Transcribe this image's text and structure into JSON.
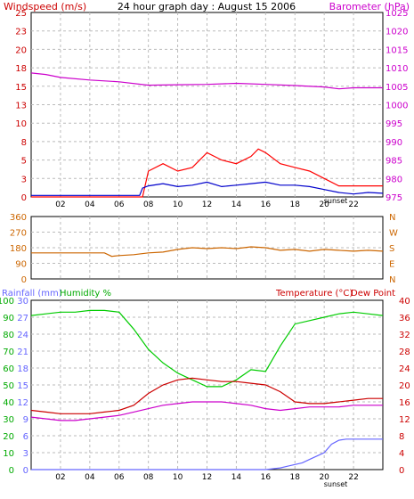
{
  "chart_data": [
    {
      "type": "line",
      "title": "24 hour graph day : August 15 2006",
      "left_axis_title": "Windspeed (m/s)",
      "right_axis_title": "Barometer (hPa)",
      "left_ylim": [
        0,
        25
      ],
      "right_ylim": [
        975,
        1025
      ],
      "left_ticks": [
        "0",
        "3",
        "5",
        "8",
        "10",
        "13",
        "15",
        "18",
        "20",
        "23",
        "25"
      ],
      "right_ticks": [
        "975",
        "980",
        "985",
        "990",
        "995",
        "1000",
        "1005",
        "1010",
        "1015",
        "1020",
        "1025"
      ],
      "xlim": [
        0,
        24
      ],
      "x_ticks": [
        "02",
        "04",
        "06",
        "08",
        "10",
        "12",
        "14",
        "16",
        "18",
        "20",
        "22"
      ],
      "annotation": "sunset",
      "series": [
        {
          "axis": "right",
          "color": "#cc00cc",
          "x": [
            0,
            1,
            2,
            4,
            6,
            8,
            10,
            12,
            14,
            16,
            18,
            20,
            21,
            22,
            24
          ],
          "values": [
            1008.6,
            1008.2,
            1007.4,
            1006.7,
            1006.2,
            1005.3,
            1005.4,
            1005.5,
            1005.8,
            1005.5,
            1005.2,
            1004.8,
            1004.3,
            1004.6,
            1004.6
          ]
        },
        {
          "axis": "left",
          "color": "#ff0000",
          "x": [
            0,
            7.6,
            8,
            9,
            10,
            11,
            12,
            13,
            14,
            15,
            15.5,
            16,
            17,
            18,
            19,
            20,
            21,
            22,
            23,
            24
          ],
          "values": [
            0,
            0,
            3.5,
            4.5,
            3.5,
            4,
            6,
            5,
            4.5,
            5.5,
            6.5,
            6,
            4.5,
            4,
            3.5,
            2.5,
            1.5,
            1.5,
            1.5,
            1.5
          ]
        },
        {
          "axis": "left",
          "color": "#0000cc",
          "x": [
            0,
            7.4,
            7.6,
            8,
            9,
            10,
            11,
            12,
            13,
            14,
            15,
            16,
            17,
            18,
            19,
            20,
            21,
            22,
            23,
            24
          ],
          "values": [
            0.2,
            0.2,
            1.2,
            1.5,
            1.8,
            1.4,
            1.6,
            2,
            1.4,
            1.6,
            1.8,
            2,
            1.6,
            1.6,
            1.4,
            1,
            0.6,
            0.4,
            0.6,
            0.5
          ]
        }
      ]
    },
    {
      "type": "line",
      "right_axis_title": "N W S E N",
      "ylim": [
        0,
        360
      ],
      "left_ticks": [
        "0",
        "90",
        "180",
        "270",
        "360"
      ],
      "right_labels": [
        "N",
        "W",
        "S",
        "E",
        "N"
      ],
      "xlim": [
        0,
        24
      ],
      "series": [
        {
          "color": "#cc6600",
          "x": [
            0,
            1,
            2,
            3,
            4,
            5,
            5.5,
            6,
            7,
            8,
            9,
            10,
            11,
            12,
            13,
            14,
            15,
            16,
            17,
            18,
            19,
            20,
            21,
            22,
            23,
            24
          ],
          "values": [
            150,
            150,
            150,
            150,
            150,
            150,
            130,
            135,
            140,
            150,
            155,
            170,
            180,
            175,
            180,
            175,
            185,
            180,
            165,
            170,
            160,
            170,
            165,
            160,
            165,
            160
          ]
        }
      ]
    },
    {
      "type": "line",
      "left_axis_title": "Rainfall (mm)",
      "left_axis_title2": "Humidity %",
      "right_axis_title": "Temperature (°C)",
      "right_axis_title2": "Dew Point",
      "humidity_ticks": [
        "0",
        "10",
        "20",
        "30",
        "40",
        "50",
        "60",
        "70",
        "80",
        "90",
        "100"
      ],
      "rain_ticks": [
        "0",
        "3",
        "6",
        "9",
        "12",
        "15",
        "18",
        "21",
        "24",
        "27",
        "30"
      ],
      "temp_ticks": [
        "0",
        "4",
        "8",
        "12",
        "16",
        "20",
        "24",
        "28",
        "32",
        "36",
        "40"
      ],
      "xlim": [
        0,
        24
      ],
      "x_ticks": [
        "02",
        "04",
        "06",
        "08",
        "10",
        "12",
        "14",
        "16",
        "18",
        "20",
        "22"
      ],
      "annotation": "sunset",
      "series": [
        {
          "axis": "humidity",
          "color": "#00cc00",
          "x": [
            0,
            1,
            2,
            3,
            4,
            5,
            6,
            7,
            8,
            9,
            10,
            11,
            12,
            13,
            14,
            15,
            16,
            17,
            18,
            19,
            20,
            21,
            22,
            23,
            24
          ],
          "values": [
            91,
            92,
            93,
            93,
            94,
            94,
            93,
            83,
            71,
            63,
            57,
            53,
            49,
            49,
            53,
            59,
            58,
            73,
            86,
            88,
            90,
            92,
            93,
            92,
            91
          ]
        },
        {
          "axis": "humidity",
          "color": "#cc0000",
          "x": [
            0,
            1,
            2,
            3,
            4,
            5,
            6,
            7,
            8,
            9,
            10,
            11,
            12,
            13,
            14,
            15,
            16,
            17,
            18,
            19,
            20,
            21,
            22,
            23,
            24
          ],
          "values": [
            35,
            34,
            33,
            33,
            33,
            34,
            35,
            38,
            45,
            50,
            53,
            54,
            53,
            52,
            52,
            51,
            50,
            46,
            40,
            39,
            39,
            40,
            41,
            42,
            42
          ]
        },
        {
          "axis": "humidity",
          "color": "#cc00cc",
          "x": [
            0,
            1,
            2,
            3,
            4,
            5,
            6,
            7,
            8,
            9,
            10,
            11,
            12,
            13,
            14,
            15,
            16,
            17,
            18,
            19,
            20,
            21,
            22,
            23,
            24
          ],
          "values": [
            31,
            30,
            29,
            29,
            30,
            31,
            32,
            34,
            36,
            38,
            39,
            40,
            40,
            40,
            39,
            38,
            36,
            35,
            36,
            37,
            37,
            37,
            38,
            38,
            38
          ]
        },
        {
          "axis": "rain",
          "color": "#6666ff",
          "x": [
            0,
            16,
            17,
            17.5,
            18,
            18.5,
            19,
            19.5,
            20,
            20.5,
            21,
            21.5,
            22,
            24
          ],
          "values": [
            0,
            0,
            0.3,
            0.6,
            0.9,
            1.2,
            1.8,
            2.4,
            3,
            4.5,
            5.2,
            5.4,
            5.4,
            5.4
          ]
        }
      ]
    }
  ]
}
